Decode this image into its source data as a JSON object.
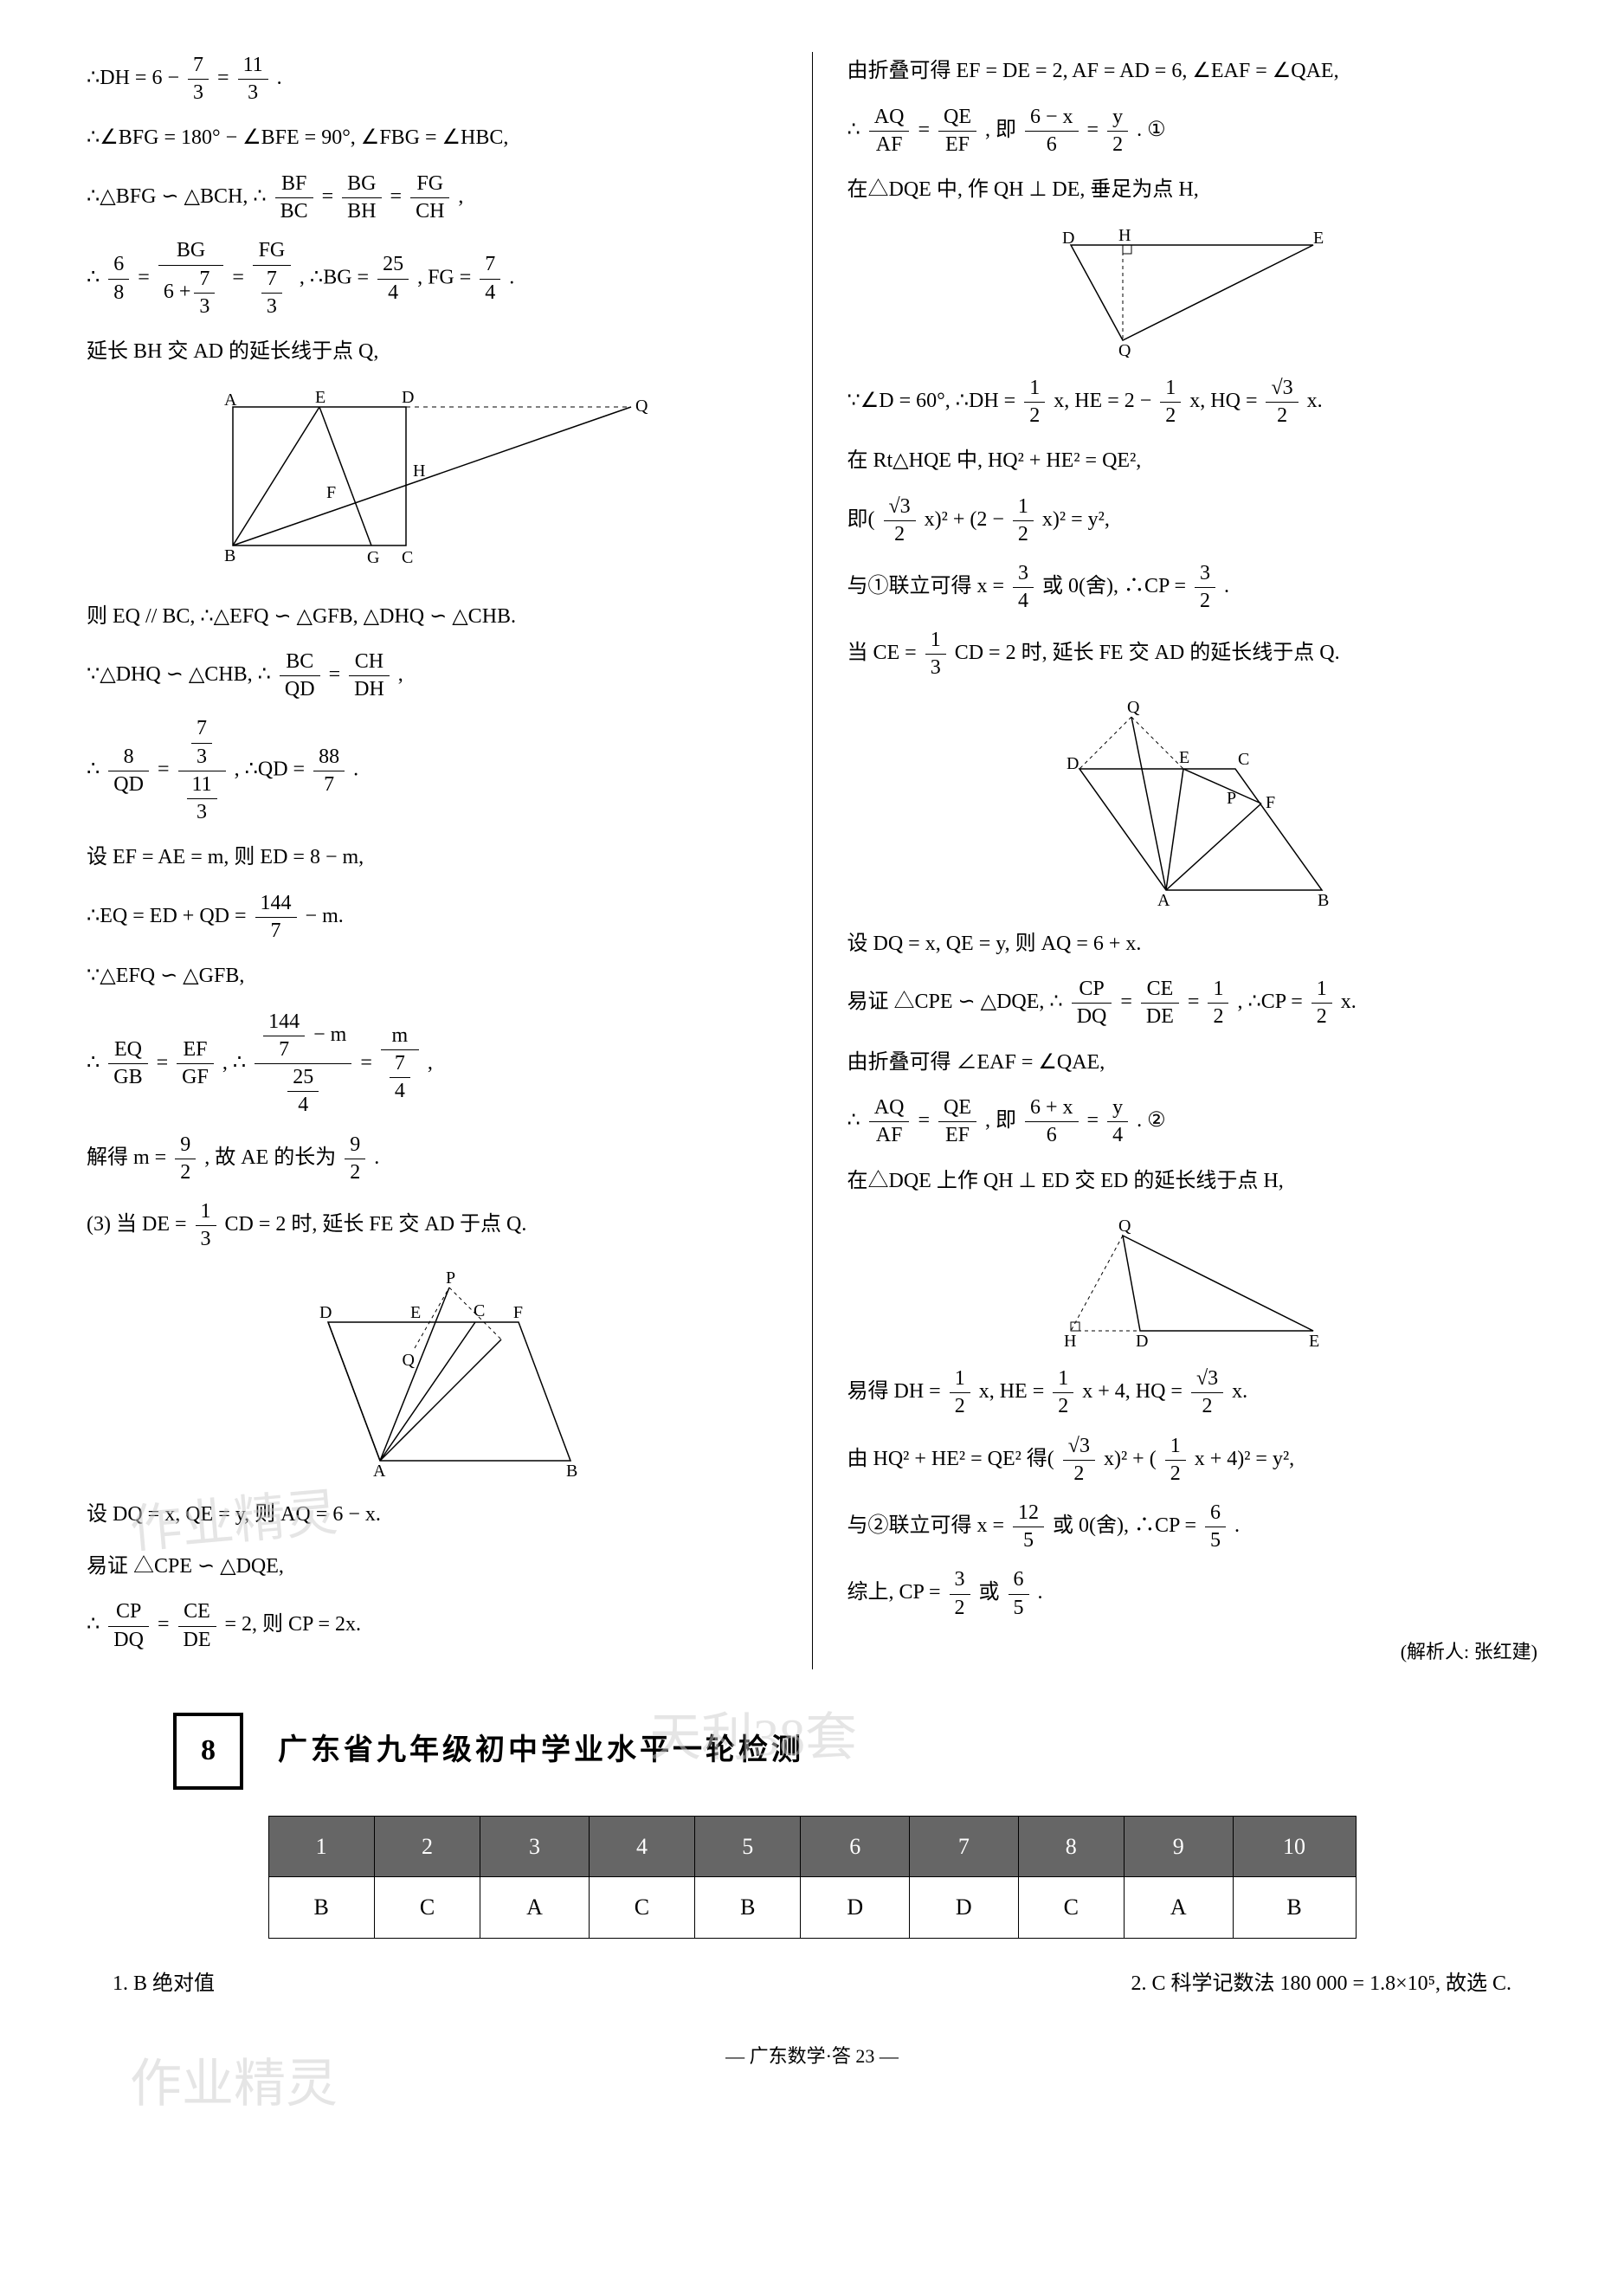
{
  "left": {
    "l1_a": "∴DH = 6 −",
    "l1_frac1_num": "7",
    "l1_frac1_den": "3",
    "l1_b": "=",
    "l1_frac2_num": "11",
    "l1_frac2_den": "3",
    "l1_c": ".",
    "l2": "∴∠BFG = 180° − ∠BFE = 90°, ∠FBG = ∠HBC,",
    "l3_a": "∴△BFG ∽ △BCH, ∴",
    "l3_f1n": "BF",
    "l3_f1d": "BC",
    "l3_eq1": "=",
    "l3_f2n": "BG",
    "l3_f2d": "BH",
    "l3_eq2": "=",
    "l3_f3n": "FG",
    "l3_f3d": "CH",
    "l3_end": ",",
    "l4_a": "∴",
    "l4_f1n": "6",
    "l4_f1d": "8",
    "l4_eq1": "=",
    "l4_f2n": "BG",
    "l4_eq2": "=",
    "l4_f3n": "FG",
    "l4_b": ", ∴BG =",
    "l4_f4n": "25",
    "l4_f4d": "4",
    "l4_c": ", FG =",
    "l4_f5n": "7",
    "l4_f5d": "4",
    "l4_d": ".",
    "l4_d2n": "6 +",
    "l4_cf1n": "7",
    "l4_cf1d": "3",
    "l4_cf2n": "7",
    "l4_cf2d": "3",
    "l5": "延长 BH 交 AD 的延长线于点 Q,",
    "fig1": {
      "A": "A",
      "E": "E",
      "D": "D",
      "Q": "Q",
      "F": "F",
      "H": "H",
      "B": "B",
      "G": "G",
      "C": "C"
    },
    "l6": "则 EQ // BC, ∴△EFQ ∽ △GFB, △DHQ ∽ △CHB.",
    "l7_a": "∵△DHQ ∽ △CHB, ∴",
    "l7_f1n": "BC",
    "l7_f1d": "QD",
    "l7_eq": "=",
    "l7_f2n": "CH",
    "l7_f2d": "DH",
    "l7_end": ",",
    "l8_a": "∴",
    "l8_f1n": "8",
    "l8_f1d": "QD",
    "l8_eq": "=",
    "l8_b": ", ∴QD =",
    "l8_f3n": "88",
    "l8_f3d": "7",
    "l8_c": ".",
    "l8_cfAn": "7",
    "l8_cfAd": "3",
    "l8_cfBn": "11",
    "l8_cfBd": "3",
    "l9": "设 EF = AE = m, 则 ED = 8 − m,",
    "l10_a": "∴EQ = ED + QD =",
    "l10_f1n": "144",
    "l10_f1d": "7",
    "l10_b": "− m.",
    "l11": "∵△EFQ ∽ △GFB,",
    "l12_a": "∴",
    "l12_f1n": "EQ",
    "l12_f1d": "GB",
    "l12_eq1": "=",
    "l12_f2n": "EF",
    "l12_f2d": "GF",
    "l12_b": ", ∴",
    "l12_eq2": "=",
    "l12_end": ",",
    "l12_cfAn": "144",
    "l12_cfAd": "7",
    "l12_cfAm": " − m",
    "l12_cfBn": "25",
    "l12_cfBd": "4",
    "l12_cfCn": "m",
    "l12_cfDn": "7",
    "l12_cfDd": "4",
    "l13_a": "解得 m =",
    "l13_f1n": "9",
    "l13_f1d": "2",
    "l13_b": ", 故 AE 的长为",
    "l13_f2n": "9",
    "l13_f2d": "2",
    "l13_c": ".",
    "l14_a": "(3) 当 DE =",
    "l14_f1n": "1",
    "l14_f1d": "3",
    "l14_b": "CD = 2 时, 延长 FE 交 AD 于点 Q.",
    "fig2": {
      "D": "D",
      "E": "E",
      "C": "C",
      "F": "F",
      "P": "P",
      "Q": "Q",
      "A": "A",
      "B": "B"
    },
    "l15": "设 DQ = x, QE = y, 则 AQ = 6 − x.",
    "l16": "易证 △CPE ∽ △DQE,",
    "l17_a": "∴",
    "l17_f1n": "CP",
    "l17_f1d": "DQ",
    "l17_eq": "=",
    "l17_f2n": "CE",
    "l17_f2d": "DE",
    "l17_b": "= 2, 则 CP = 2x."
  },
  "right": {
    "r1": "由折叠可得 EF = DE = 2, AF = AD = 6, ∠EAF = ∠QAE,",
    "r2_a": "∴",
    "r2_f1n": "AQ",
    "r2_f1d": "AF",
    "r2_eq1": "=",
    "r2_f2n": "QE",
    "r2_f2d": "EF",
    "r2_b": ", 即",
    "r2_f3n": "6 − x",
    "r2_f3d": "6",
    "r2_eq2": "=",
    "r2_f4n": "y",
    "r2_f4d": "2",
    "r2_c": ". ①",
    "r3": "在△DQE 中, 作 QH ⊥ DE, 垂足为点 H,",
    "fig3": {
      "D": "D",
      "H": "H",
      "E": "E",
      "Q": "Q"
    },
    "r4_a": "∵∠D = 60°, ∴DH =",
    "r4_f1n": "1",
    "r4_f1d": "2",
    "r4_b": "x, HE = 2 −",
    "r4_f2n": "1",
    "r4_f2d": "2",
    "r4_c": "x, HQ =",
    "r4_f3n": "√3",
    "r4_f3d": "2",
    "r4_d": "x.",
    "r5": "在 Rt△HQE 中, HQ² + HE² = QE²,",
    "r6_a": "即(",
    "r6_f1n": "√3",
    "r6_f1d": "2",
    "r6_b": "x)² + (2 −",
    "r6_f2n": "1",
    "r6_f2d": "2",
    "r6_c": "x)² = y²,",
    "r7_a": "与①联立可得 x =",
    "r7_f1n": "3",
    "r7_f1d": "4",
    "r7_b": "或 0(舍), ∴CP =",
    "r7_f2n": "3",
    "r7_f2d": "2",
    "r7_c": ".",
    "r8_a": "当 CE =",
    "r8_f1n": "1",
    "r8_f1d": "3",
    "r8_b": "CD = 2 时, 延长 FE 交 AD 的延长线于点 Q.",
    "fig4": {
      "Q": "Q",
      "D": "D",
      "E": "E",
      "C": "C",
      "P": "P",
      "F": "F",
      "A": "A",
      "B": "B"
    },
    "r9": "设 DQ = x, QE = y, 则 AQ = 6 + x.",
    "r10_a": "易证 △CPE ∽ △DQE, ∴",
    "r10_f1n": "CP",
    "r10_f1d": "DQ",
    "r10_eq": "=",
    "r10_f2n": "CE",
    "r10_f2d": "DE",
    "r10_b": "=",
    "r10_f3n": "1",
    "r10_f3d": "2",
    "r10_c": ", ∴CP =",
    "r10_f4n": "1",
    "r10_f4d": "2",
    "r10_d": "x.",
    "r11": "由折叠可得 ∠EAF = ∠QAE,",
    "r12_a": "∴",
    "r12_f1n": "AQ",
    "r12_f1d": "AF",
    "r12_eq1": "=",
    "r12_f2n": "QE",
    "r12_f2d": "EF",
    "r12_b": ", 即",
    "r12_f3n": "6 + x",
    "r12_f3d": "6",
    "r12_eq2": "=",
    "r12_f4n": "y",
    "r12_f4d": "4",
    "r12_c": ". ②",
    "r13": "在△DQE 上作 QH ⊥ ED 交 ED 的延长线于点 H,",
    "fig5": {
      "Q": "Q",
      "H": "H",
      "D": "D",
      "E": "E"
    },
    "r14_a": "易得 DH =",
    "r14_f1n": "1",
    "r14_f1d": "2",
    "r14_b": "x, HE =",
    "r14_f2n": "1",
    "r14_f2d": "2",
    "r14_c": "x + 4, HQ =",
    "r14_f3n": "√3",
    "r14_f3d": "2",
    "r14_d": "x.",
    "r15_a": "由 HQ² + HE² = QE² 得(",
    "r15_f1n": "√3",
    "r15_f1d": "2",
    "r15_b": "x)² + (",
    "r15_f2n": "1",
    "r15_f2d": "2",
    "r15_c": "x + 4)² = y²,",
    "r16_a": "与②联立可得 x =",
    "r16_f1n": "12",
    "r16_f1d": "5",
    "r16_b": "或 0(舍), ∴CP =",
    "r16_f2n": "6",
    "r16_f2d": "5",
    "r16_c": ".",
    "r17_a": "综上, CP =",
    "r17_f1n": "3",
    "r17_f1d": "2",
    "r17_b": "或",
    "r17_f2n": "6",
    "r17_f2d": "5",
    "r17_c": ".",
    "credit": "(解析人: 张红建)"
  },
  "section": {
    "number": "8",
    "title": "广东省九年级初中学业水平一轮检测"
  },
  "table": {
    "headers": [
      "1",
      "2",
      "3",
      "4",
      "5",
      "6",
      "7",
      "8",
      "9",
      "10"
    ],
    "row": [
      "B",
      "C",
      "A",
      "C",
      "B",
      "D",
      "D",
      "C",
      "A",
      "B"
    ]
  },
  "bottom": {
    "left_q": "1. B  绝对值",
    "right_q": "2. C  科学记数法  180 000 = 1.8×10⁵, 故选 C."
  },
  "footer": "— 广东数学·答 23 —",
  "watermarks": {
    "w1": "作业精灵",
    "w2": "天利38套",
    "w3": "作业精灵"
  }
}
